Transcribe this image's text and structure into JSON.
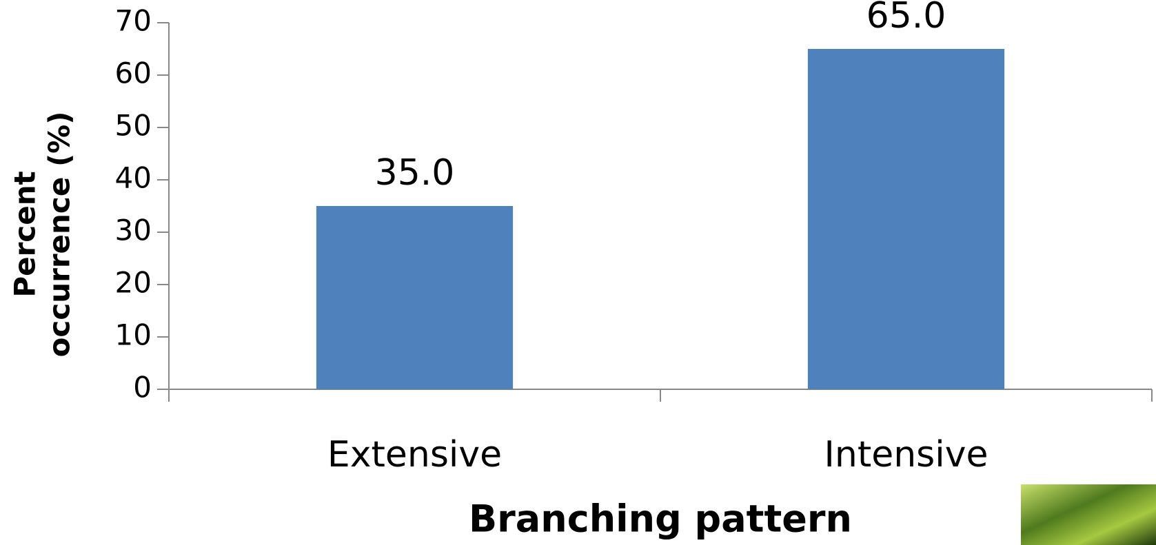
{
  "chart_data": {
    "type": "bar",
    "xlabel": "Branching pattern",
    "ylabel": "Percent occurrence (%)",
    "categories": [
      "Extensive",
      "Intensive"
    ],
    "values": [
      35,
      65
    ],
    "value_labels": [
      "35.0",
      "65.0"
    ],
    "color": "#4f81bd",
    "ylim": [
      0,
      70
    ],
    "yticks": [
      0,
      10,
      20,
      30,
      40,
      50,
      60,
      70
    ],
    "grid": false
  }
}
